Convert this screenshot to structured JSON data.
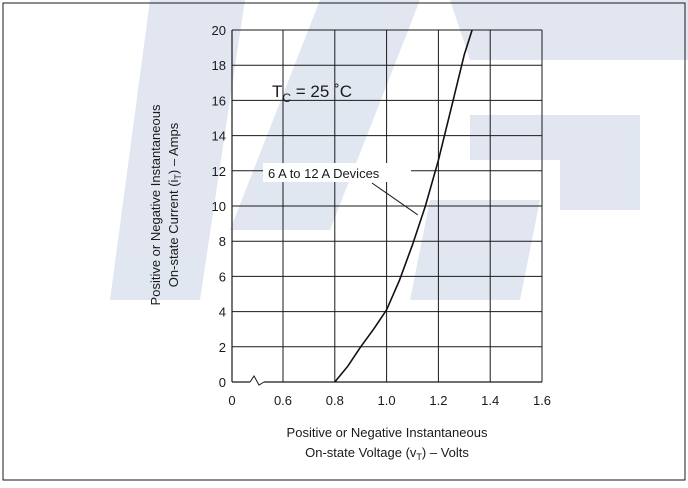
{
  "chart_data": {
    "type": "line",
    "xlabel_line1": "Positive or Negative Instantaneous",
    "xlabel_line2": "On-state Voltage (v",
    "xlabel_sub": "T",
    "xlabel_tail": ") – Volts",
    "ylabel_line1": "Positive or Negative Instantaneous",
    "ylabel_line2": "On-state Current (i",
    "ylabel_sub": "T",
    "ylabel_tail": ") – Amps",
    "x_ticks": [
      0,
      0.6,
      0.8,
      1.0,
      1.2,
      1.4,
      1.6
    ],
    "x_tick_labels": [
      "0",
      "0.6",
      "0.8",
      "1.0",
      "1.2",
      "1.4",
      "1.6"
    ],
    "y_ticks": [
      0,
      2,
      4,
      6,
      8,
      10,
      12,
      14,
      16,
      18,
      20
    ],
    "y_tick_labels": [
      "0",
      "2",
      "4",
      "6",
      "8",
      "10",
      "12",
      "14",
      "16",
      "18",
      "20"
    ],
    "xlim": [
      0.4,
      1.6
    ],
    "ylim": [
      0,
      20
    ],
    "axis_break": "x between 0 and 0.6",
    "grid": true,
    "annotation_tc_main": "T",
    "annotation_tc_sub": "C",
    "annotation_tc_tail": " = 25 ˚C",
    "series": [
      {
        "name": "6 A to 12 A Devices",
        "x": [
          0.8,
          0.85,
          0.9,
          0.95,
          1.0,
          1.05,
          1.1,
          1.15,
          1.2,
          1.25,
          1.3,
          1.33
        ],
        "y": [
          0,
          0.9,
          2.0,
          3.0,
          4.1,
          5.8,
          7.8,
          10.0,
          12.6,
          15.6,
          18.6,
          20.0
        ]
      }
    ],
    "pointer_at": [
      1.12,
      9.5
    ]
  },
  "colors": {
    "grid": "#1a1a1a",
    "curve": "#111111",
    "watermark": "#c9d3e6"
  }
}
